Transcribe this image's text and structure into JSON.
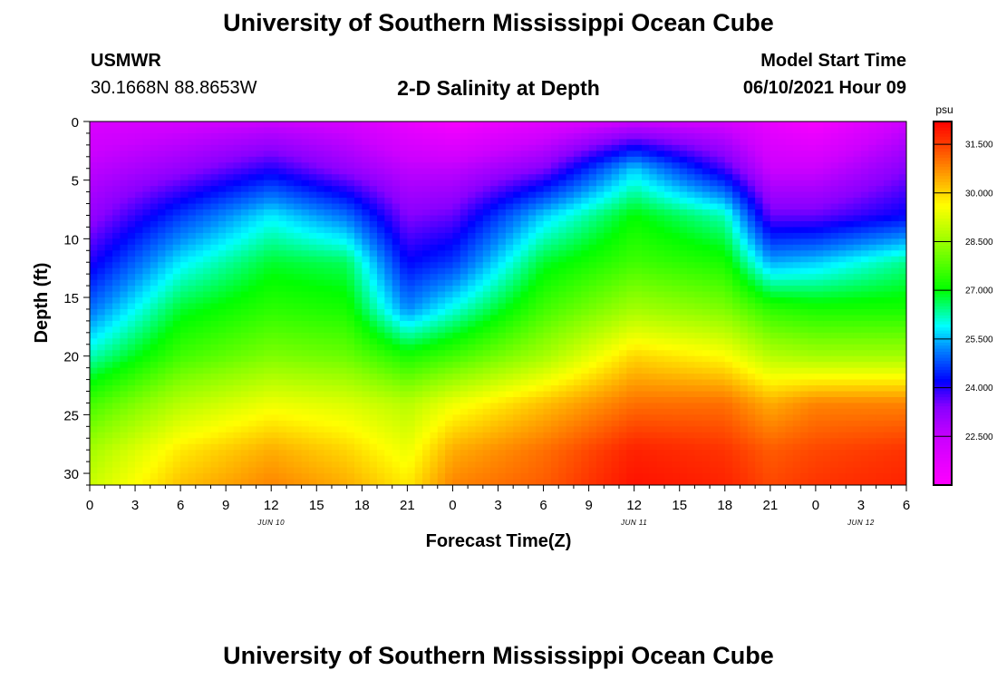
{
  "page": {
    "title_top": "University of Southern Mississippi Ocean Cube",
    "title_bottom": "University of Southern Mississippi Ocean Cube",
    "station": "USMWR",
    "coordinates": "30.1668N  88.8653W",
    "model_start_label": "Model Start Time",
    "model_start_value": "06/10/2021 Hour 09"
  },
  "chart_data": {
    "type": "heatmap",
    "title": "2-D Salinity at Depth",
    "xlabel": "Forecast Time(Z)",
    "ylabel": "Depth (ft)",
    "x_range_hours": [
      0,
      54
    ],
    "ylim": [
      0,
      31
    ],
    "y_ticks": [
      0,
      5,
      10,
      15,
      20,
      25,
      30
    ],
    "x_ticks": [
      {
        "h": 0,
        "label": "0"
      },
      {
        "h": 3,
        "label": "3"
      },
      {
        "h": 6,
        "label": "6"
      },
      {
        "h": 9,
        "label": "9"
      },
      {
        "h": 12,
        "label": "12"
      },
      {
        "h": 15,
        "label": "15"
      },
      {
        "h": 18,
        "label": "18"
      },
      {
        "h": 21,
        "label": "21"
      },
      {
        "h": 24,
        "label": "0"
      },
      {
        "h": 27,
        "label": "3"
      },
      {
        "h": 30,
        "label": "6"
      },
      {
        "h": 33,
        "label": "9"
      },
      {
        "h": 36,
        "label": "12"
      },
      {
        "h": 39,
        "label": "15"
      },
      {
        "h": 42,
        "label": "18"
      },
      {
        "h": 45,
        "label": "21"
      },
      {
        "h": 48,
        "label": "0"
      },
      {
        "h": 51,
        "label": "3"
      },
      {
        "h": 54,
        "label": "6"
      }
    ],
    "date_labels": [
      {
        "h": 12,
        "label": "JUN 10"
      },
      {
        "h": 36,
        "label": "JUN 11"
      },
      {
        "h": 51,
        "label": "JUN 12"
      }
    ],
    "colorbar": {
      "unit": "psu",
      "min": 21.0,
      "max": 32.2,
      "ticks": [
        "31.500",
        "30.000",
        "28.500",
        "27.000",
        "25.500",
        "24.000",
        "22.500"
      ],
      "colors": [
        {
          "v": 21.0,
          "c": "#ff00ff"
        },
        {
          "v": 22.4,
          "c": "#cc00ff"
        },
        {
          "v": 23.4,
          "c": "#8800ff"
        },
        {
          "v": 24.2,
          "c": "#0000ff"
        },
        {
          "v": 25.2,
          "c": "#0088ff"
        },
        {
          "v": 25.9,
          "c": "#00ffff"
        },
        {
          "v": 27.0,
          "c": "#00ff00"
        },
        {
          "v": 28.3,
          "c": "#88ff00"
        },
        {
          "v": 29.6,
          "c": "#ffff00"
        },
        {
          "v": 30.6,
          "c": "#ff9900"
        },
        {
          "v": 31.6,
          "c": "#ff3300"
        },
        {
          "v": 32.2,
          "c": "#ff0000"
        }
      ]
    },
    "salinity_profiles": {
      "depths_ft": [
        0,
        4,
        8,
        12,
        16,
        20,
        24,
        28,
        31
      ],
      "series": [
        {
          "h": 0,
          "values": [
            22.0,
            22.6,
            23.2,
            24.0,
            25.0,
            26.2,
            27.6,
            28.6,
            29.0
          ]
        },
        {
          "h": 6,
          "values": [
            22.2,
            23.2,
            24.6,
            25.8,
            26.8,
            27.6,
            28.8,
            29.8,
            30.2
          ]
        },
        {
          "h": 12,
          "values": [
            22.4,
            24.0,
            25.8,
            26.8,
            27.4,
            28.2,
            29.4,
            30.4,
            30.8
          ]
        },
        {
          "h": 17,
          "values": [
            22.2,
            23.2,
            25.0,
            26.6,
            27.2,
            28.0,
            29.2,
            30.0,
            30.4
          ]
        },
        {
          "h": 21,
          "values": [
            21.6,
            22.6,
            23.4,
            24.2,
            25.2,
            27.2,
            28.8,
            29.4,
            29.8
          ]
        },
        {
          "h": 24,
          "values": [
            21.2,
            22.6,
            23.6,
            24.6,
            26.0,
            27.6,
            29.4,
            30.4,
            30.8
          ]
        },
        {
          "h": 30,
          "values": [
            21.8,
            23.4,
            25.6,
            26.8,
            27.6,
            28.6,
            30.2,
            31.0,
            31.2
          ]
        },
        {
          "h": 36,
          "values": [
            22.4,
            25.6,
            27.0,
            27.6,
            28.6,
            30.0,
            31.0,
            31.8,
            32.0
          ]
        },
        {
          "h": 42,
          "values": [
            22.2,
            23.8,
            26.2,
            27.2,
            28.2,
            29.6,
            31.0,
            31.6,
            31.8
          ]
        },
        {
          "h": 45,
          "values": [
            21.6,
            22.4,
            23.6,
            25.4,
            27.4,
            28.8,
            30.4,
            31.2,
            31.4
          ]
        },
        {
          "h": 48,
          "values": [
            21.2,
            22.4,
            23.6,
            25.6,
            27.2,
            28.6,
            30.8,
            31.4,
            31.6
          ]
        },
        {
          "h": 54,
          "values": [
            22.4,
            23.4,
            24.2,
            26.4,
            27.2,
            28.6,
            30.8,
            31.6,
            31.8
          ]
        }
      ]
    }
  }
}
